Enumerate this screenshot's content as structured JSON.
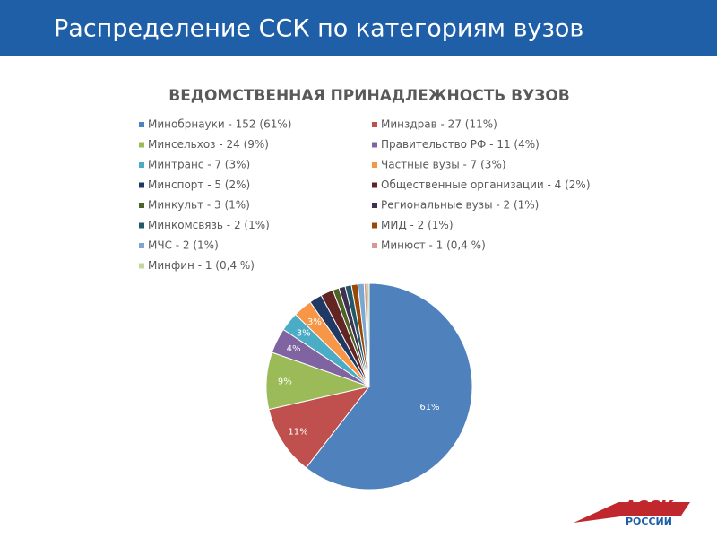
{
  "header": {
    "title": "Распределение ССК по категориям вузов"
  },
  "logo": {
    "line1": "АССК",
    "line2": "РОССИИ"
  },
  "chart_data": {
    "type": "pie",
    "title": "ВЕДОМСТВЕННАЯ ПРИНАДЛЕЖНОСТЬ ВУЗОВ",
    "categories": [
      "Минобрнауки - 152 (61%)",
      "Минздрав - 27 (11%)",
      "Минсельхоз - 24 (9%)",
      "Правительство РФ - 11 (4%)",
      "Минтранс - 7 (3%)",
      "Частные вузы - 7 (3%)",
      "Минспорт - 5 (2%)",
      "Общественные организации - 4 (2%)",
      "Минкульт - 3 (1%)",
      "Региональные вузы - 2 (1%)",
      "Минкомсвязь - 2 (1%)",
      "МИД - 2 (1%)",
      "МЧС - 2 (1%)",
      "Минюст - 1 (0,4 %)",
      "Минфин - 1 (0,4 %)"
    ],
    "values": [
      61,
      11,
      9,
      4,
      3,
      3,
      2,
      2,
      1,
      1,
      1,
      1,
      1,
      0.4,
      0.4
    ],
    "value_labels": [
      "61%",
      "11%",
      "9%",
      "4%",
      "3%",
      "3%",
      null,
      null,
      null,
      null,
      null,
      null,
      null,
      null,
      null
    ],
    "colors": [
      "#4f81bd",
      "#c0504d",
      "#9bbb59",
      "#8064a2",
      "#4bacc6",
      "#f79646",
      "#1f3864",
      "#632523",
      "#4f6228",
      "#3f3151",
      "#215968",
      "#984807",
      "#7ba7d0",
      "#d99694",
      "#c3d69b"
    ]
  }
}
